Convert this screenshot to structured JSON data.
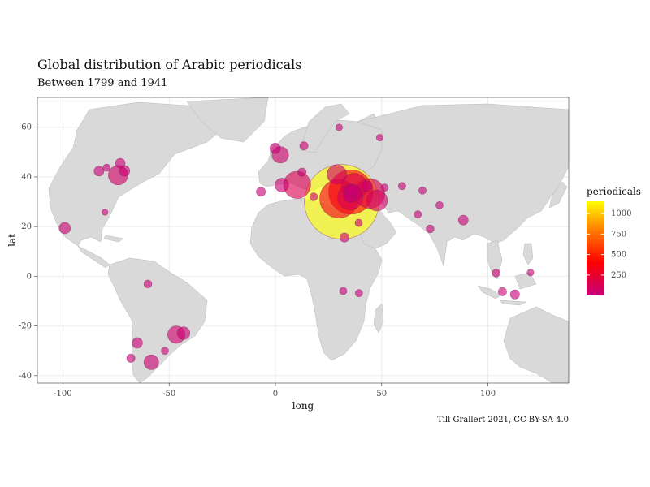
{
  "title": "Global distribution of Arabic periodicals",
  "subtitle": "Between 1799 and 1941",
  "caption": "Till Grallert 2021, CC BY-SA 4.0",
  "chart_data": {
    "type": "scatter",
    "subtype": "bubble-map",
    "xlabel": "long",
    "ylabel": "lat",
    "xlim": [
      -112,
      138
    ],
    "ylim": [
      -43,
      72
    ],
    "x_ticks": [
      -100,
      -50,
      0,
      50,
      100
    ],
    "y_ticks": [
      -40,
      -20,
      0,
      20,
      40,
      60
    ],
    "legend": {
      "title": "periodicals",
      "placement": "right",
      "range": [
        1,
        1150
      ],
      "breaks": [
        1000,
        750,
        500,
        250
      ],
      "colors": [
        "#c8007a",
        "#ff0000",
        "#ff7f00",
        "#ffff00"
      ]
    },
    "points": [
      {
        "x": 31.2,
        "y": 30.0,
        "v": 1150
      },
      {
        "x": 35.5,
        "y": 33.9,
        "v": 380
      },
      {
        "x": 29.9,
        "y": 31.2,
        "v": 280
      },
      {
        "x": 44.4,
        "y": 33.3,
        "v": 160
      },
      {
        "x": 10.2,
        "y": 36.8,
        "v": 130
      },
      {
        "x": 37.1,
        "y": 36.2,
        "v": 120
      },
      {
        "x": 35.2,
        "y": 31.8,
        "v": 110
      },
      {
        "x": 28.9,
        "y": 41.0,
        "v": 60
      },
      {
        "x": 47.8,
        "y": 30.5,
        "v": 70
      },
      {
        "x": 36.3,
        "y": 33.5,
        "v": 50
      },
      {
        "x": 2.3,
        "y": 48.9,
        "v": 40
      },
      {
        "x": 3.0,
        "y": 36.7,
        "v": 25
      },
      {
        "x": -74.0,
        "y": 40.7,
        "v": 60
      },
      {
        "x": -99.1,
        "y": 19.4,
        "v": 15
      },
      {
        "x": -46.6,
        "y": -23.5,
        "v": 45
      },
      {
        "x": -43.2,
        "y": -22.9,
        "v": 20
      },
      {
        "x": -58.4,
        "y": -34.6,
        "v": 30
      },
      {
        "x": -0.1,
        "y": 51.5,
        "v": 12
      },
      {
        "x": 13.4,
        "y": 52.5,
        "v": 6
      },
      {
        "x": 12.5,
        "y": 41.9,
        "v": 6
      },
      {
        "x": 34.8,
        "y": 32.1,
        "v": 15
      },
      {
        "x": 35.8,
        "y": 34.4,
        "v": 12
      },
      {
        "x": 39.2,
        "y": 21.5,
        "v": 4
      },
      {
        "x": 43.1,
        "y": 36.3,
        "v": 12
      },
      {
        "x": -6.8,
        "y": 34.0,
        "v": 8
      },
      {
        "x": 18.0,
        "y": 32.0,
        "v": 5
      },
      {
        "x": 32.5,
        "y": 15.6,
        "v": 8
      },
      {
        "x": 88.4,
        "y": 22.6,
        "v": 10
      },
      {
        "x": 106.8,
        "y": -6.2,
        "v": 6
      },
      {
        "x": 112.7,
        "y": -7.3,
        "v": 8
      },
      {
        "x": 103.8,
        "y": 1.3,
        "v": 5
      },
      {
        "x": -65.0,
        "y": -26.8,
        "v": 12
      },
      {
        "x": -68.0,
        "y": -33.0,
        "v": 6
      },
      {
        "x": -80.2,
        "y": 25.8,
        "v": 2
      },
      {
        "x": -79.4,
        "y": 43.7,
        "v": 4
      },
      {
        "x": -83.0,
        "y": 42.3,
        "v": 10
      },
      {
        "x": -71.0,
        "y": 42.4,
        "v": 12
      },
      {
        "x": -73.0,
        "y": 45.5,
        "v": 10
      },
      {
        "x": -60.0,
        "y": -3.1,
        "v": 5
      },
      {
        "x": -52.0,
        "y": -30.0,
        "v": 4
      },
      {
        "x": 31.9,
        "y": -5.9,
        "v": 4
      },
      {
        "x": 39.3,
        "y": -6.8,
        "v": 4
      },
      {
        "x": 72.8,
        "y": 19.1,
        "v": 5
      },
      {
        "x": 67.0,
        "y": 24.9,
        "v": 4
      },
      {
        "x": 77.2,
        "y": 28.6,
        "v": 4
      },
      {
        "x": 51.4,
        "y": 35.7,
        "v": 4
      },
      {
        "x": 59.6,
        "y": 36.3,
        "v": 4
      },
      {
        "x": 69.2,
        "y": 34.5,
        "v": 4
      },
      {
        "x": 120.0,
        "y": 1.5,
        "v": 3
      },
      {
        "x": 30.0,
        "y": 59.9,
        "v": 3
      },
      {
        "x": 49.1,
        "y": 55.8,
        "v": 3
      }
    ]
  }
}
